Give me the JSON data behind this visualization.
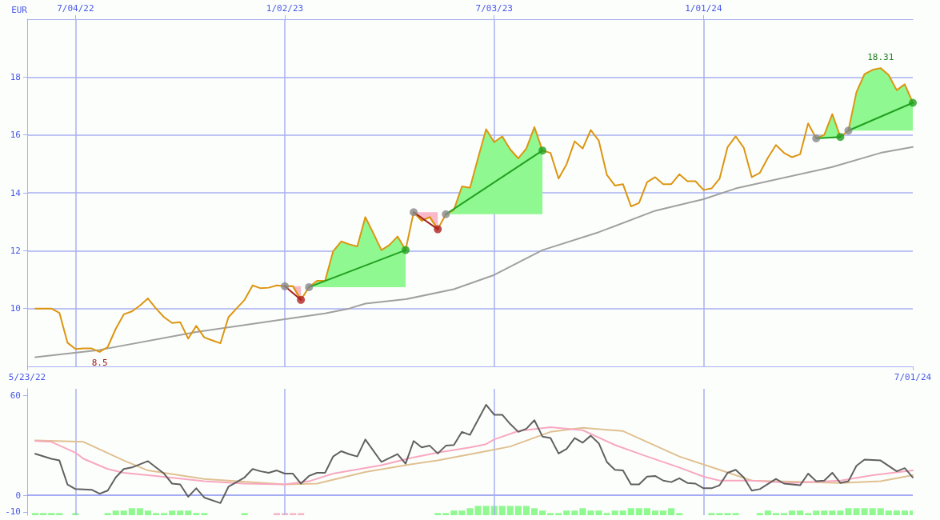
{
  "chart_data": [
    {
      "type": "line",
      "ylabel": "EUR",
      "xlim": [
        "2022-05-23",
        "2024-07-01"
      ],
      "xticks": [
        {
          "value": "2022-05-23",
          "label": "5/23/22"
        },
        {
          "value": "2024-07-01",
          "label": "7/01/24"
        }
      ],
      "x2lim": [
        "2022-05-23",
        "2024-07-01"
      ],
      "x2ticks": [
        {
          "value": "2022-07-04",
          "label": "7/04/22"
        },
        {
          "value": "2023-01-02",
          "label": "1/02/23"
        },
        {
          "value": "2023-07-03",
          "label": "7/03/23"
        },
        {
          "value": "2024-01-01",
          "label": "1/01/24"
        }
      ],
      "ylim": [
        8,
        20
      ],
      "yticks": [
        10,
        12,
        14,
        16,
        18
      ],
      "grid": true,
      "annotations": [
        {
          "text": "18.31",
          "x": "2024-06-03",
          "y": 18.31
        },
        {
          "text": "8.5",
          "x": "2022-07-25",
          "y": 8.5
        }
      ],
      "x": [
        "2022-05-30",
        "2022-06-06",
        "2022-06-13",
        "2022-06-20",
        "2022-06-27",
        "2022-07-04",
        "2022-07-11",
        "2022-07-18",
        "2022-07-25",
        "2022-08-01",
        "2022-08-08",
        "2022-08-15",
        "2022-08-22",
        "2022-08-29",
        "2022-09-05",
        "2022-09-12",
        "2022-09-19",
        "2022-09-26",
        "2022-10-03",
        "2022-10-10",
        "2022-10-17",
        "2022-10-24",
        "2022-10-31",
        "2022-11-07",
        "2022-11-14",
        "2022-11-21",
        "2022-11-28",
        "2022-12-05",
        "2022-12-12",
        "2022-12-19",
        "2022-12-26",
        "2023-01-02",
        "2023-01-09",
        "2023-01-16",
        "2023-01-23",
        "2023-01-30",
        "2023-02-06",
        "2023-02-13",
        "2023-02-20",
        "2023-02-27",
        "2023-03-06",
        "2023-03-13",
        "2023-03-20",
        "2023-03-27",
        "2023-04-03",
        "2023-04-10",
        "2023-04-17",
        "2023-04-24",
        "2023-05-01",
        "2023-05-08",
        "2023-05-15",
        "2023-05-22",
        "2023-05-29",
        "2023-06-05",
        "2023-06-12",
        "2023-06-19",
        "2023-06-26",
        "2023-07-03",
        "2023-07-10",
        "2023-07-17",
        "2023-07-24",
        "2023-07-31",
        "2023-08-07",
        "2023-08-14",
        "2023-08-21",
        "2023-08-28",
        "2023-09-04",
        "2023-09-11",
        "2023-09-18",
        "2023-09-25",
        "2023-10-02",
        "2023-10-09",
        "2023-10-16",
        "2023-10-23",
        "2023-10-30",
        "2023-11-06",
        "2023-11-13",
        "2023-11-20",
        "2023-11-27",
        "2023-12-04",
        "2023-12-11",
        "2023-12-18",
        "2023-12-25",
        "2024-01-01",
        "2024-01-08",
        "2024-01-15",
        "2024-01-22",
        "2024-01-29",
        "2024-02-05",
        "2024-02-12",
        "2024-02-19",
        "2024-02-26",
        "2024-03-04",
        "2024-03-11",
        "2024-03-18",
        "2024-03-25",
        "2024-04-01",
        "2024-04-08",
        "2024-04-15",
        "2024-04-22",
        "2024-04-29",
        "2024-05-06",
        "2024-05-13",
        "2024-05-20",
        "2024-05-27",
        "2024-06-03",
        "2024-06-10",
        "2024-06-17",
        "2024-06-24",
        "2024-07-01"
      ],
      "series": [
        {
          "color": "#a0a0a0",
          "x": [
            "2022-05-30",
            "2022-07-25",
            "2022-10-17",
            "2023-01-02",
            "2023-02-06",
            "2023-02-27",
            "2023-03-13",
            "2023-04-17",
            "2023-05-29",
            "2023-07-03",
            "2023-08-14",
            "2023-10-02",
            "2023-11-20",
            "2024-01-01",
            "2024-01-29",
            "2024-04-22",
            "2024-06-03",
            "2024-07-01"
          ],
          "values": [
            8.32,
            8.57,
            9.19,
            9.63,
            9.83,
            10.0,
            10.17,
            10.32,
            10.67,
            11.16,
            12.02,
            12.64,
            13.38,
            13.78,
            14.15,
            14.89,
            15.38,
            15.58
          ]
        },
        {
          "color": "#dd9510",
          "values": [
            10.0,
            10.0,
            10.0,
            9.85,
            8.82,
            8.6,
            8.62,
            8.62,
            8.5,
            8.67,
            9.3,
            9.8,
            9.9,
            10.1,
            10.35,
            10.0,
            9.7,
            9.5,
            9.53,
            8.96,
            9.4,
            9.0,
            8.9,
            8.8,
            9.7,
            10.0,
            10.3,
            10.8,
            10.7,
            10.72,
            10.8,
            10.77,
            10.77,
            10.3,
            10.74,
            10.96,
            10.96,
            11.98,
            12.32,
            12.22,
            12.15,
            13.16,
            12.6,
            12.02,
            12.2,
            12.49,
            12.02,
            13.33,
            13.04,
            13.16,
            12.74,
            13.26,
            13.41,
            14.22,
            14.17,
            15.2,
            16.2,
            15.75,
            15.95,
            15.5,
            15.19,
            15.53,
            16.27,
            15.46,
            15.38,
            14.49,
            14.99,
            15.78,
            15.53,
            16.17,
            15.8,
            14.62,
            14.25,
            14.3,
            13.53,
            13.65,
            14.37,
            14.54,
            14.3,
            14.3,
            14.64,
            14.4,
            14.4,
            14.1,
            14.15,
            14.49,
            15.58,
            15.95,
            15.56,
            14.54,
            14.69,
            15.21,
            15.65,
            15.38,
            15.23,
            15.33,
            16.4,
            15.88,
            16.0,
            16.72,
            15.93,
            16.15,
            17.48,
            18.1,
            18.25,
            18.31,
            18.07,
            17.55,
            17.75,
            17.11
          ],
          "lower": [
            null,
            null,
            null,
            null,
            null,
            null,
            null,
            null,
            null,
            null,
            null,
            null,
            null,
            null,
            null,
            null,
            null,
            null,
            null,
            null,
            null,
            null,
            null,
            null,
            null,
            null,
            null,
            null,
            null,
            null,
            null,
            null,
            null,
            null,
            10.74,
            10.74,
            10.74,
            10.74,
            10.74,
            10.74,
            10.74,
            10.74,
            10.74,
            10.74,
            10.74,
            10.74,
            10.74,
            null,
            null,
            null,
            null,
            13.26,
            13.26,
            13.26,
            13.26,
            13.26,
            13.26,
            13.26,
            13.26,
            13.26,
            13.26,
            13.26,
            13.26,
            13.26,
            null,
            null,
            null,
            null,
            null,
            null,
            null,
            null,
            null,
            null,
            null,
            null,
            null,
            null,
            null,
            null,
            null,
            null,
            null,
            null,
            null,
            null,
            null,
            null,
            null,
            null,
            null,
            null,
            null,
            null,
            null,
            null,
            null,
            15.88,
            15.88,
            15.88,
            15.88,
            16.15,
            16.15,
            16.15,
            16.15,
            16.15,
            16.15,
            16.15,
            16.15,
            16.15
          ],
          "upper": [
            null,
            null,
            null,
            null,
            null,
            null,
            null,
            null,
            null,
            null,
            null,
            null,
            null,
            null,
            null,
            null,
            null,
            null,
            null,
            null,
            null,
            null,
            null,
            null,
            null,
            null,
            null,
            null,
            null,
            null,
            null,
            null,
            null,
            null,
            10.74,
            10.96,
            10.96,
            11.98,
            12.32,
            12.22,
            12.15,
            13.16,
            12.6,
            12.02,
            12.2,
            12.49,
            12.02,
            null,
            null,
            null,
            null,
            13.26,
            13.41,
            14.22,
            14.17,
            15.2,
            16.2,
            15.75,
            15.95,
            15.5,
            15.19,
            15.53,
            16.27,
            15.46,
            null,
            null,
            null,
            null,
            null,
            null,
            null,
            null,
            null,
            null,
            null,
            null,
            null,
            null,
            null,
            null,
            null,
            null,
            null,
            null,
            null,
            null,
            null,
            null,
            null,
            null,
            null,
            null,
            null,
            null,
            null,
            null,
            null,
            15.88,
            16.0,
            16.72,
            15.93,
            16.15,
            17.48,
            18.1,
            18.25,
            18.31,
            18.07,
            17.55,
            17.75,
            17.11
          ]
        },
        {
          "color": "#dd9510",
          "x": [
            "2023-01-02",
            "2023-01-09",
            "2023-01-16"
          ],
          "values": [
            10.77,
            10.77,
            10.3
          ],
          "lower": [
            10.77,
            10.77,
            10.3
          ],
          "upper": [
            10.77,
            10.77,
            10.77
          ]
        },
        {
          "color": "#dd9510",
          "x": [
            "2023-04-24",
            "2023-05-01",
            "2023-05-08",
            "2023-05-15"
          ],
          "values": [
            13.33,
            13.04,
            13.16,
            12.74
          ],
          "lower": [
            13.33,
            13.04,
            13.16,
            12.74
          ],
          "upper": [
            13.33,
            13.33,
            13.33,
            13.33
          ]
        },
        {
          "type": "line",
          "color": "#a02020",
          "x": [
            "2023-01-02",
            "2023-01-16"
          ],
          "values": [
            10.77,
            10.3
          ]
        },
        {
          "type": "line",
          "color": "#20a020",
          "x": [
            "2023-01-23",
            "2023-04-17"
          ],
          "values": [
            10.74,
            12.02
          ]
        },
        {
          "type": "line",
          "color": "#a02020",
          "x": [
            "2023-04-24",
            "2023-05-15"
          ],
          "values": [
            13.33,
            12.74
          ]
        },
        {
          "type": "line",
          "color": "#20a020",
          "x": [
            "2023-05-22",
            "2023-08-14"
          ],
          "values": [
            13.26,
            15.46
          ]
        },
        {
          "type": "line",
          "color": "#20a020",
          "x": [
            "2024-04-08",
            "2024-04-29"
          ],
          "values": [
            15.88,
            15.93
          ]
        },
        {
          "type": "line",
          "color": "#20a020",
          "x": [
            "2024-05-06",
            "2024-07-01"
          ],
          "values": [
            16.15,
            17.11
          ]
        },
        {
          "type": "scatter",
          "color": "#888888",
          "marker": "circle",
          "x": [
            "2023-01-02",
            "2023-01-23",
            "2023-04-24",
            "2023-05-22",
            "2024-04-08",
            "2024-05-06"
          ],
          "values": [
            10.77,
            10.74,
            13.33,
            13.26,
            15.88,
            16.15
          ]
        },
        {
          "type": "scatter",
          "color": "#b02020",
          "marker": "circle",
          "x": [
            "2023-01-16",
            "2023-05-15"
          ],
          "values": [
            10.3,
            12.74
          ]
        },
        {
          "type": "scatter",
          "color": "#20a020",
          "marker": "circle",
          "x": [
            "2023-04-17",
            "2023-08-14",
            "2024-04-29",
            "2024-07-01"
          ],
          "values": [
            12.02,
            15.46,
            15.93,
            17.11
          ]
        }
      ]
    },
    {
      "type": "line",
      "xlim": [
        "2022-05-23",
        "2024-07-01"
      ],
      "ylim": [
        -12,
        64
      ],
      "yticks": [
        -10,
        0,
        60
      ],
      "tick_labels": "y",
      "ref_lines": [
        {
          "axis": "y",
          "value": 0,
          "color": "#8890f0"
        },
        {
          "axis": "x",
          "value": "2022-07-04",
          "color": "#a8b0f0"
        },
        {
          "axis": "x",
          "value": "2023-01-02",
          "color": "#a8b0f0"
        },
        {
          "axis": "x",
          "value": "2023-07-03",
          "color": "#a8b0f0"
        },
        {
          "axis": "x",
          "value": "2024-01-01",
          "color": "#a8b0f0"
        }
      ],
      "series": [
        {
          "type": "bar",
          "color": "#90f890",
          "x": [
            "2022-05-30",
            "2022-06-06",
            "2022-06-13",
            "2022-06-20",
            "2022-07-04",
            "2022-08-01",
            "2022-08-08",
            "2022-08-15",
            "2022-08-22",
            "2022-08-29",
            "2022-09-05",
            "2022-09-12",
            "2022-09-19",
            "2022-09-26",
            "2022-10-03",
            "2022-10-10",
            "2022-10-17",
            "2022-10-24",
            "2022-11-28",
            "2023-05-15",
            "2023-05-22",
            "2023-05-29",
            "2023-06-05",
            "2023-06-12",
            "2023-06-19",
            "2023-06-26",
            "2023-07-03",
            "2023-07-10",
            "2023-07-17",
            "2023-07-24",
            "2023-07-31",
            "2023-08-07",
            "2023-08-14",
            "2023-08-21",
            "2023-08-28",
            "2023-09-04",
            "2023-09-11",
            "2023-09-18",
            "2023-09-25",
            "2023-10-02",
            "2023-10-09",
            "2023-10-16",
            "2023-10-23",
            "2023-10-30",
            "2023-11-06",
            "2023-11-13",
            "2023-11-20",
            "2023-11-27",
            "2023-12-04",
            "2023-12-11",
            "2024-01-08",
            "2024-01-15",
            "2024-01-22",
            "2024-01-29",
            "2024-02-19",
            "2024-02-26",
            "2024-03-04",
            "2024-03-11",
            "2024-03-18",
            "2024-03-25",
            "2024-04-01",
            "2024-04-08",
            "2024-04-15",
            "2024-04-22",
            "2024-04-29",
            "2024-05-06",
            "2024-05-13",
            "2024-05-20",
            "2024-05-27",
            "2024-06-03",
            "2024-06-10",
            "2024-06-17",
            "2024-06-24",
            "2024-07-01"
          ],
          "values": [
            1.3,
            1.3,
            1.3,
            1.3,
            1.3,
            1.3,
            2.8,
            2.8,
            4.2,
            4.2,
            2.8,
            1.3,
            1.3,
            2.8,
            2.8,
            2.8,
            1.3,
            1.3,
            1.3,
            1.3,
            1.3,
            2.8,
            2.8,
            4.2,
            5.6,
            5.6,
            5.6,
            5.6,
            5.6,
            5.6,
            5.6,
            4.2,
            2.8,
            1.3,
            1.3,
            2.8,
            2.8,
            4.2,
            2.8,
            2.8,
            1.3,
            2.8,
            2.8,
            4.2,
            4.2,
            4.2,
            2.8,
            2.8,
            4.2,
            1.3,
            1.3,
            1.3,
            1.3,
            1.3,
            1.3,
            2.8,
            1.3,
            1.3,
            2.8,
            2.8,
            1.3,
            2.8,
            2.8,
            2.8,
            2.8,
            4.2,
            4.2,
            4.2,
            4.2,
            4.2,
            2.8,
            2.8,
            2.8,
            2.8
          ],
          "base": [
            -12,
            -12,
            -12,
            -12,
            -12,
            -12,
            -12,
            -12,
            -12,
            -12,
            -12,
            -12,
            -12,
            -12,
            -12,
            -12,
            -12,
            -12,
            -12,
            -12,
            -12,
            -12,
            -12,
            -12,
            -12,
            -12,
            -12,
            -12,
            -12,
            -12,
            -12,
            -12,
            -12,
            -12,
            -12,
            -12,
            -12,
            -12,
            -12,
            -12,
            -12,
            -12,
            -12,
            -12,
            -12,
            -12,
            -12,
            -12,
            -12,
            -12,
            -12,
            -12,
            -12,
            -12,
            -12,
            -12,
            -12,
            -12,
            -12,
            -12,
            -12,
            -12,
            -12,
            -12,
            -12,
            -12,
            -12,
            -12,
            -12,
            -12,
            -12,
            -12,
            -12,
            -12
          ]
        },
        {
          "type": "bar",
          "color": "#f8b8c8",
          "x": [
            "2022-12-26",
            "2023-01-02",
            "2023-01-09",
            "2023-01-16"
          ],
          "values": [
            1.3,
            1.3,
            1.3,
            1.3
          ],
          "base": [
            -12,
            -12,
            -12,
            -12
          ]
        },
        {
          "color": "#e0c090",
          "x": [
            "2022-05-30",
            "2022-07-11",
            "2022-08-15",
            "2022-09-05",
            "2022-10-24",
            "2023-01-02",
            "2023-01-30",
            "2023-03-13",
            "2023-04-17",
            "2023-05-15",
            "2023-06-26",
            "2023-07-17",
            "2023-08-21",
            "2023-09-18",
            "2023-10-23",
            "2023-12-11",
            "2024-01-15",
            "2024-02-12",
            "2024-04-29",
            "2024-06-03",
            "2024-07-01"
          ],
          "values": [
            33,
            32.1,
            20.9,
            14.9,
            9.8,
            6.5,
            7,
            14,
            18.1,
            20.9,
            26.5,
            29.3,
            38.1,
            40.5,
            38.6,
            23.3,
            15.3,
            8.8,
            7.4,
            8.4,
            12.1
          ]
        },
        {
          "color": "#f8a8c0",
          "x": [
            "2022-05-30",
            "2022-06-13",
            "2022-07-04",
            "2022-07-11",
            "2022-08-01",
            "2022-08-15",
            "2022-09-12",
            "2022-10-24",
            "2022-11-28",
            "2023-01-02",
            "2023-01-23",
            "2023-02-13",
            "2023-03-27",
            "2023-04-24",
            "2023-05-15",
            "2023-06-12",
            "2023-06-26",
            "2023-07-03",
            "2023-07-24",
            "2023-08-21",
            "2023-09-18",
            "2023-10-16",
            "2023-11-13",
            "2023-12-11",
            "2024-01-01",
            "2024-01-15",
            "2024-02-12",
            "2024-03-18",
            "2024-04-29",
            "2024-05-27",
            "2024-07-01"
          ],
          "values": [
            32.6,
            32.1,
            25.6,
            21.9,
            15.8,
            13.5,
            11.6,
            8.4,
            7,
            6.5,
            8.4,
            13,
            18.1,
            22.8,
            25.6,
            28.8,
            30.7,
            33.5,
            38.6,
            40.9,
            39.1,
            30.2,
            23.3,
            16.7,
            11.2,
            8.8,
            8.8,
            7.4,
            8.8,
            12.1,
            14.9
          ]
        },
        {
          "color": "#606060",
          "x": [
            "2022-05-30",
            "2022-06-13",
            "2022-06-20",
            "2022-06-27",
            "2022-07-04",
            "2022-07-18",
            "2022-07-25",
            "2022-08-01",
            "2022-08-08",
            "2022-08-15",
            "2022-08-22",
            "2022-09-05",
            "2022-09-19",
            "2022-09-26",
            "2022-10-03",
            "2022-10-10",
            "2022-10-17",
            "2022-10-24",
            "2022-11-07",
            "2022-11-14",
            "2022-11-28",
            "2022-12-05",
            "2022-12-12",
            "2022-12-19",
            "2022-12-26",
            "2023-01-02",
            "2023-01-09",
            "2023-01-16",
            "2023-01-23",
            "2023-01-30",
            "2023-02-06",
            "2023-02-13",
            "2023-02-20",
            "2023-02-27",
            "2023-03-06",
            "2023-03-13",
            "2023-03-27",
            "2023-04-10",
            "2023-04-17",
            "2023-04-24",
            "2023-05-01",
            "2023-05-08",
            "2023-05-15",
            "2023-05-22",
            "2023-05-29",
            "2023-06-05",
            "2023-06-12",
            "2023-06-26",
            "2023-07-03",
            "2023-07-10",
            "2023-07-17",
            "2023-07-24",
            "2023-07-31",
            "2023-08-07",
            "2023-08-14",
            "2023-08-21",
            "2023-08-28",
            "2023-09-04",
            "2023-09-11",
            "2023-09-18",
            "2023-09-25",
            "2023-10-02",
            "2023-10-09",
            "2023-10-16",
            "2023-10-23",
            "2023-10-30",
            "2023-11-06",
            "2023-11-13",
            "2023-11-20",
            "2023-11-27",
            "2023-12-04",
            "2023-12-11",
            "2023-12-18",
            "2023-12-25",
            "2024-01-01",
            "2024-01-08",
            "2024-01-15",
            "2024-01-22",
            "2024-01-29",
            "2024-02-05",
            "2024-02-12",
            "2024-02-19",
            "2024-03-04",
            "2024-03-11",
            "2024-03-25",
            "2024-04-01",
            "2024-04-08",
            "2024-04-15",
            "2024-04-22",
            "2024-04-29",
            "2024-05-06",
            "2024-05-13",
            "2024-05-20",
            "2024-06-03",
            "2024-06-17",
            "2024-06-24",
            "2024-07-01"
          ],
          "values": [
            24.9,
            21.9,
            20.9,
            6.5,
            3.7,
            3.3,
            0.9,
            2.8,
            10.7,
            15.8,
            16.7,
            20.5,
            13,
            7,
            6.5,
            -0.9,
            4.2,
            -1.4,
            -4.7,
            5.1,
            10.7,
            15.8,
            14.4,
            13.5,
            14.9,
            13,
            13,
            7,
            11.6,
            13.5,
            13.5,
            23.3,
            26.5,
            24.7,
            23.3,
            33.5,
            20,
            24.7,
            19,
            32.6,
            28.8,
            29.8,
            25.1,
            29.8,
            30.2,
            38.1,
            36.3,
            54.4,
            48.4,
            48.4,
            42.8,
            38.1,
            40,
            45.1,
            35.3,
            34.4,
            25.1,
            27.9,
            34.4,
            31.6,
            35.8,
            31.2,
            20,
            15.3,
            14.9,
            6.5,
            6.5,
            11.2,
            11.6,
            8.8,
            7.9,
            10.2,
            7.4,
            7,
            4.2,
            4.2,
            6,
            13.5,
            15.3,
            10.7,
            2.8,
            3.7,
            9.8,
            7,
            6,
            13,
            8.4,
            8.8,
            13.5,
            7.4,
            8.4,
            17.7,
            21.4,
            20.9,
            14.4,
            16.3,
            10.7
          ]
        }
      ]
    }
  ]
}
